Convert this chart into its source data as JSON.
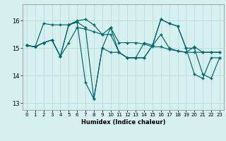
{
  "xlabel": "Humidex (Indice chaleur)",
  "bg_color": "#d6f0f0",
  "grid_color": "#c0dede",
  "line_color": "#006868",
  "xlim": [
    -0.5,
    23.5
  ],
  "ylim": [
    12.75,
    16.6
  ],
  "yticks": [
    13,
    14,
    15,
    16
  ],
  "xticks": [
    0,
    1,
    2,
    3,
    4,
    5,
    6,
    7,
    8,
    9,
    10,
    11,
    12,
    13,
    14,
    15,
    16,
    17,
    18,
    19,
    20,
    21,
    22,
    23
  ],
  "line1_x": [
    0,
    1,
    2,
    3,
    4,
    5,
    6,
    7,
    8,
    9,
    10,
    11,
    12,
    13,
    14,
    15,
    16,
    17,
    18,
    19,
    20,
    21,
    22,
    23
  ],
  "line1_y": [
    15.1,
    15.05,
    15.9,
    15.85,
    15.85,
    15.85,
    16.0,
    16.05,
    15.85,
    15.5,
    15.75,
    15.2,
    15.2,
    15.2,
    15.15,
    15.05,
    15.05,
    14.95,
    14.9,
    14.85,
    14.85,
    14.85,
    14.85,
    14.85
  ],
  "line2_x": [
    0,
    1,
    2,
    3,
    4,
    5,
    6,
    7,
    8,
    9,
    10,
    11,
    12,
    13,
    14,
    15,
    16,
    17,
    18,
    19,
    20,
    21,
    22,
    23
  ],
  "line2_y": [
    15.1,
    15.05,
    15.2,
    15.3,
    14.7,
    15.85,
    15.95,
    15.75,
    13.15,
    15.0,
    15.75,
    14.85,
    14.65,
    14.65,
    14.65,
    15.1,
    16.05,
    15.9,
    15.8,
    15.0,
    14.05,
    13.9,
    14.65,
    14.65
  ],
  "line3_x": [
    0,
    1,
    2,
    3,
    4,
    5,
    6,
    7,
    8,
    9,
    10,
    11,
    12,
    13,
    14,
    15,
    16,
    17,
    18,
    19,
    20,
    21,
    22,
    23
  ],
  "line3_y": [
    15.1,
    15.05,
    15.2,
    15.3,
    14.7,
    15.85,
    15.95,
    13.75,
    13.15,
    15.0,
    14.85,
    14.85,
    14.65,
    14.65,
    14.65,
    15.1,
    16.05,
    15.9,
    15.8,
    15.0,
    15.0,
    14.05,
    13.9,
    14.65
  ],
  "line4_x": [
    0,
    1,
    2,
    3,
    4,
    5,
    6,
    7,
    8,
    9,
    10,
    11,
    12,
    13,
    14,
    15,
    16,
    17,
    18,
    19,
    20,
    21,
    22,
    23
  ],
  "line4_y": [
    15.1,
    15.05,
    15.2,
    15.3,
    14.7,
    15.2,
    15.75,
    15.7,
    15.6,
    15.5,
    15.5,
    14.85,
    14.65,
    14.65,
    15.2,
    15.1,
    15.5,
    15.0,
    14.9,
    14.85,
    15.05,
    14.85,
    14.85,
    14.85
  ]
}
